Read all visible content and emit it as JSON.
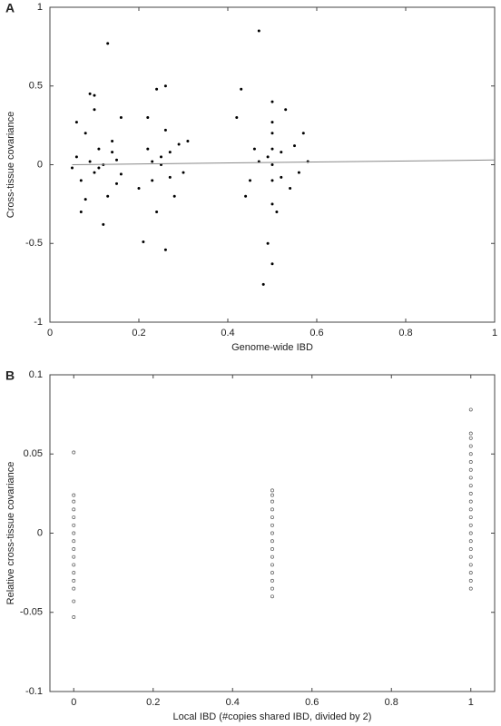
{
  "chart_data": [
    {
      "type": "scatter",
      "panel_label": "A",
      "xlabel": "Genome-wide IBD",
      "ylabel": "Cross-tissue covariance",
      "xlim": [
        0,
        1
      ],
      "ylim": [
        -1,
        1
      ],
      "xticks": [
        0,
        0.2,
        0.4,
        0.6,
        0.8,
        1
      ],
      "yticks": [
        -1,
        -0.5,
        0,
        0.5,
        1
      ],
      "series": [
        {
          "style": "dot",
          "color": "#000000",
          "x": [
            0.06,
            0.07,
            0.08,
            0.09,
            0.1,
            0.11,
            0.12,
            0.13,
            0.13,
            0.14,
            0.15,
            0.16,
            0.07,
            0.1,
            0.12,
            0.09,
            0.11,
            0.14,
            0.06,
            0.08,
            0.15,
            0.1,
            0.16,
            0.05,
            0.21,
            0.22,
            0.23,
            0.24,
            0.25,
            0.26,
            0.26,
            0.27,
            0.28,
            0.29,
            0.3,
            0.24,
            0.22,
            0.25,
            0.27,
            0.23,
            0.31,
            0.2,
            0.26,
            0.42,
            0.43,
            0.45,
            0.46,
            0.47,
            0.48,
            0.49,
            0.5,
            0.5,
            0.5,
            0.5,
            0.5,
            0.5,
            0.5,
            0.5,
            0.49,
            0.51,
            0.52,
            0.53,
            0.54,
            0.55,
            0.56,
            0.57,
            0.44,
            0.47,
            0.52,
            0.58
          ],
          "values": [
            0.05,
            -0.1,
            0.2,
            0.45,
            -0.05,
            0.1,
            0.0,
            0.77,
            -0.2,
            0.08,
            -0.12,
            0.3,
            -0.3,
            0.35,
            -0.38,
            0.02,
            -0.02,
            0.15,
            0.27,
            -0.22,
            0.03,
            0.44,
            -0.06,
            -0.02,
            -0.49,
            0.1,
            -0.1,
            0.48,
            0.0,
            0.22,
            -0.54,
            0.08,
            -0.2,
            0.13,
            -0.05,
            -0.3,
            0.3,
            0.05,
            -0.08,
            0.02,
            0.15,
            -0.15,
            0.5,
            0.3,
            0.48,
            -0.1,
            0.1,
            0.85,
            -0.76,
            -0.5,
            0.4,
            -0.63,
            0.0,
            0.1,
            -0.1,
            0.2,
            -0.25,
            0.27,
            0.05,
            -0.3,
            0.08,
            0.35,
            -0.15,
            0.12,
            -0.05,
            0.2,
            -0.2,
            0.02,
            -0.08,
            0.02
          ]
        },
        {
          "style": "line",
          "color": "#888888",
          "x": [
            0.05,
            1
          ],
          "values": [
            0.0,
            0.03
          ]
        }
      ]
    },
    {
      "type": "scatter",
      "panel_label": "B",
      "xlabel": "Local IBD (#copies shared IBD, divided by 2)",
      "ylabel": "Relative cross-tissue covariance",
      "xlim": [
        -0.06,
        1.06
      ],
      "ylim": [
        -0.1,
        0.1
      ],
      "xticks": [
        0,
        0.2,
        0.4,
        0.6,
        0.8,
        1
      ],
      "yticks": [
        -0.1,
        -0.05,
        0,
        0.05,
        0.1
      ],
      "series": [
        {
          "style": "open",
          "color": "#555555",
          "x": [
            0,
            0,
            0,
            0,
            0,
            0,
            0,
            0,
            0,
            0,
            0,
            0,
            0,
            0,
            0,
            0,
            0.5,
            0.5,
            0.5,
            0.5,
            0.5,
            0.5,
            0.5,
            0.5,
            0.5,
            0.5,
            0.5,
            0.5,
            0.5,
            0.5,
            0.5,
            1,
            1,
            1,
            1,
            1,
            1,
            1,
            1,
            1,
            1,
            1,
            1,
            1,
            1,
            1,
            1,
            1,
            1,
            1,
            1,
            1,
            1
          ],
          "values": [
            0.051,
            0.024,
            0.02,
            0.015,
            0.01,
            0.005,
            0,
            -0.005,
            -0.01,
            -0.015,
            -0.02,
            -0.025,
            -0.03,
            -0.035,
            -0.043,
            -0.053,
            0.027,
            0.024,
            0.02,
            0.015,
            0.01,
            0.005,
            0,
            -0.005,
            -0.01,
            -0.015,
            -0.02,
            -0.025,
            -0.03,
            -0.035,
            -0.04,
            0.078,
            0.063,
            0.06,
            0.055,
            0.05,
            0.045,
            0.04,
            0.035,
            0.03,
            0.025,
            0.02,
            0.015,
            0.01,
            0.005,
            0,
            -0.005,
            -0.01,
            -0.015,
            -0.02,
            -0.025,
            -0.03,
            -0.035
          ]
        }
      ]
    }
  ]
}
